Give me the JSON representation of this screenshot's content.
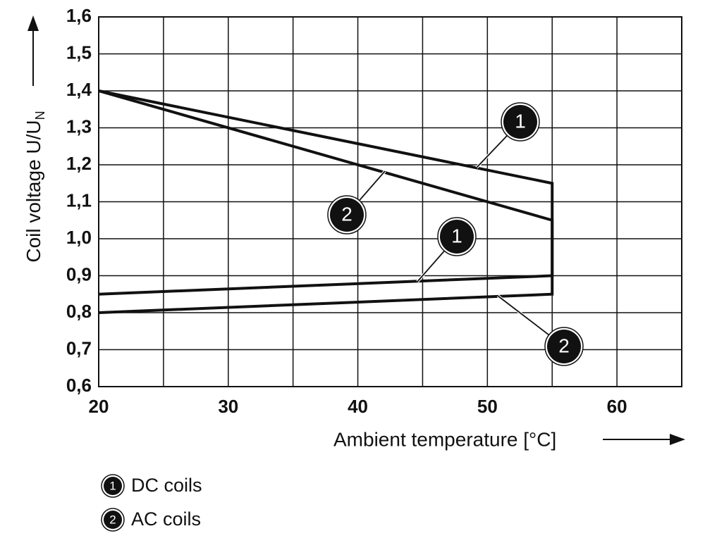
{
  "chart_data": {
    "type": "line",
    "xlabel": "Ambient temperature [°C]",
    "ylabel": {
      "text": "Coil voltage U/U",
      "sub": "N"
    },
    "xlim": [
      20,
      65
    ],
    "ylim": [
      0.6,
      1.6
    ],
    "xticks": [
      20,
      30,
      40,
      50,
      60
    ],
    "xgrid": [
      20,
      25,
      30,
      35,
      40,
      45,
      50,
      55,
      60,
      65
    ],
    "yticks": [
      {
        "value": 0.6,
        "label": "0,6"
      },
      {
        "value": 0.7,
        "label": "0,7"
      },
      {
        "value": 0.8,
        "label": "0,8"
      },
      {
        "value": 0.9,
        "label": "0,9"
      },
      {
        "value": 1.0,
        "label": "1,0"
      },
      {
        "value": 1.1,
        "label": "1,1"
      },
      {
        "value": 1.2,
        "label": "1,2"
      },
      {
        "value": 1.3,
        "label": "1,3"
      },
      {
        "value": 1.4,
        "label": "1,4"
      },
      {
        "value": 1.5,
        "label": "1,5"
      },
      {
        "value": 1.6,
        "label": "1,6"
      }
    ],
    "grid": true,
    "series": [
      {
        "name": "DC coils",
        "marker": "1",
        "color": "#111111",
        "x": [
          20,
          55,
          55,
          20
        ],
        "values": [
          1.4,
          1.15,
          0.9,
          0.85
        ]
      },
      {
        "name": "AC coils",
        "marker": "2",
        "color": "#111111",
        "x": [
          20,
          55,
          55,
          20
        ],
        "values": [
          1.4,
          1.05,
          0.85,
          0.8
        ]
      }
    ]
  }
}
